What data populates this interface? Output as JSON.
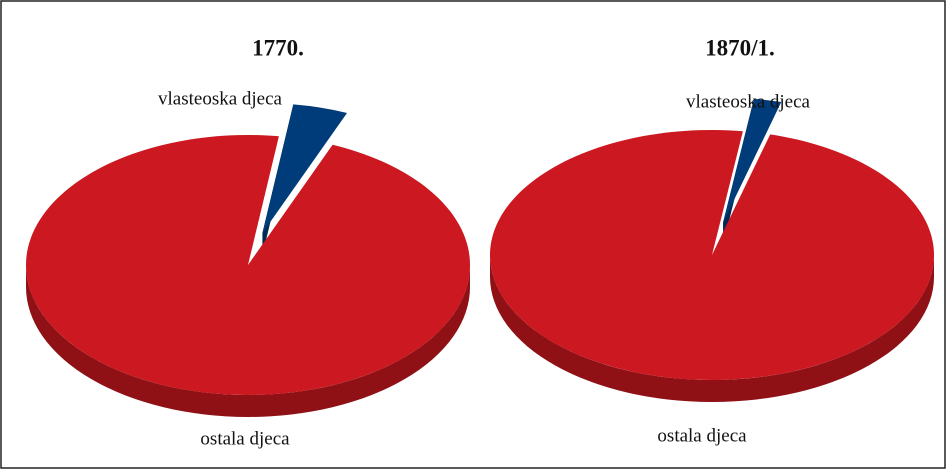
{
  "chart_data": [
    {
      "type": "pie",
      "title": "1770.",
      "categories": [
        "vlasteoska djeca",
        "ostala djeca"
      ],
      "values": [
        4,
        96
      ],
      "colors": [
        "#003b7a",
        "#cc1820"
      ]
    },
    {
      "type": "pie",
      "title": "1870/1.",
      "categories": [
        "vlasteoska djeca",
        "ostala djeca"
      ],
      "values": [
        2,
        98
      ],
      "colors": [
        "#003b7a",
        "#cc1820"
      ]
    }
  ]
}
